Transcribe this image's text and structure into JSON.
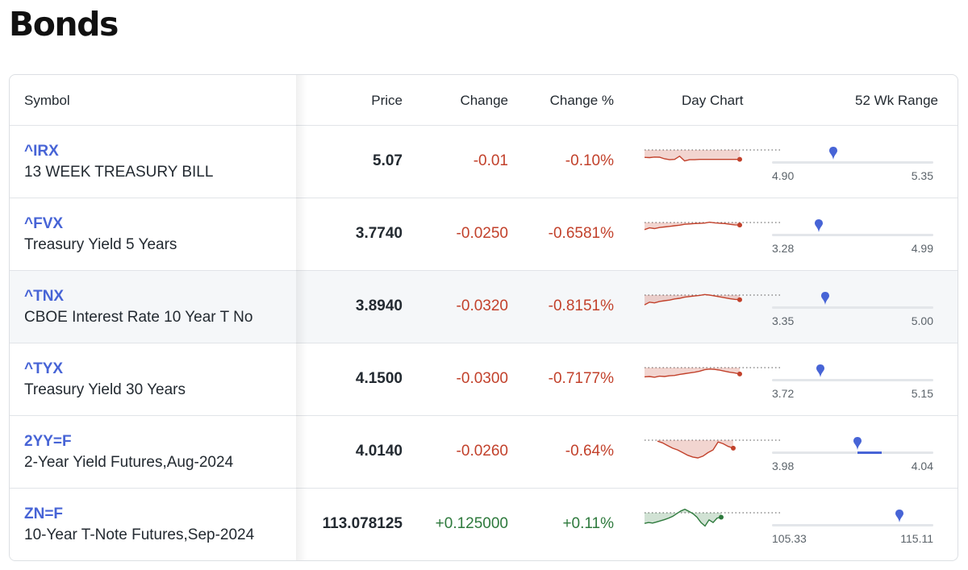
{
  "page": {
    "title": "Bonds"
  },
  "columns": {
    "symbol": "Symbol",
    "price": "Price",
    "change": "Change",
    "change_pct": "Change %",
    "day_chart": "Day Chart",
    "range_52wk": "52 Wk Range"
  },
  "colors": {
    "link": "#4764d6",
    "negative": "#c2412b",
    "positive": "#2e7a3d",
    "marker": "#4764d6"
  },
  "rows": [
    {
      "symbol": "^IRX",
      "name": "13 WEEK TREASURY BILL",
      "price": "5.07",
      "change": "-0.01",
      "change_pct": "-0.10%",
      "direction": "down",
      "highlight": false,
      "range_low": "4.90",
      "range_high": "5.35",
      "range_position": 0.38,
      "range_fill": null,
      "spark": [
        0.42,
        0.43,
        0.4,
        0.41,
        0.5,
        0.55,
        0.53,
        0.35,
        0.62,
        0.55,
        0.55,
        0.53,
        0.53,
        0.53,
        0.53,
        0.53,
        0.53,
        0.53,
        0.53,
        0.53
      ]
    },
    {
      "symbol": "^FVX",
      "name": "Treasury Yield 5 Years",
      "price": "3.7740",
      "change": "-0.0250",
      "change_pct": "-0.6581%",
      "direction": "down",
      "highlight": false,
      "range_low": "3.28",
      "range_high": "4.99",
      "range_position": 0.29,
      "range_fill": null,
      "spark": [
        0.4,
        0.3,
        0.34,
        0.28,
        0.25,
        0.22,
        0.18,
        0.15,
        0.1,
        0.08,
        0.06,
        0.05,
        0.03,
        -0.02,
        0.02,
        0.04,
        0.06,
        0.1,
        0.13,
        0.14
      ]
    },
    {
      "symbol": "^TNX",
      "name": "CBOE Interest Rate 10 Year T No",
      "price": "3.8940",
      "change": "-0.0320",
      "change_pct": "-0.8151%",
      "direction": "down",
      "highlight": true,
      "range_low": "3.35",
      "range_high": "5.00",
      "range_position": 0.33,
      "range_fill": null,
      "spark": [
        0.55,
        0.4,
        0.44,
        0.36,
        0.32,
        0.28,
        0.22,
        0.18,
        0.12,
        0.08,
        0.05,
        0.02,
        -0.03,
        0.0,
        0.05,
        0.1,
        0.15,
        0.2,
        0.24,
        0.26
      ]
    },
    {
      "symbol": "^TYX",
      "name": "Treasury Yield 30 Years",
      "price": "4.1500",
      "change": "-0.0300",
      "change_pct": "-0.7177%",
      "direction": "down",
      "highlight": false,
      "range_low": "3.72",
      "range_high": "5.15",
      "range_position": 0.3,
      "range_fill": null,
      "spark": [
        0.52,
        0.5,
        0.54,
        0.48,
        0.5,
        0.46,
        0.44,
        0.38,
        0.34,
        0.3,
        0.26,
        0.2,
        0.12,
        0.08,
        0.1,
        0.14,
        0.2,
        0.26,
        0.3,
        0.36
      ]
    },
    {
      "symbol": "2YY=F",
      "name": "2-Year Yield Futures,Aug-2024",
      "price": "4.0140",
      "change": "-0.0260",
      "change_pct": "-0.64%",
      "direction": "down",
      "highlight": false,
      "range_low": "3.98",
      "range_high": "4.04",
      "range_position": 0.53,
      "range_fill": [
        0.53,
        0.68
      ],
      "spark": [
        0.05,
        0.15,
        0.3,
        0.45,
        0.55,
        0.7,
        0.85,
        0.95,
        1.0,
        0.9,
        0.7,
        0.55,
        0.1,
        0.2,
        0.35,
        0.45
      ]
    },
    {
      "symbol": "ZN=F",
      "name": "10-Year T-Note Futures,Sep-2024",
      "price": "113.078125",
      "change": "+0.125000",
      "change_pct": "+0.11%",
      "direction": "up",
      "highlight": false,
      "range_low": "105.33",
      "range_high": "115.11",
      "range_position": 0.79,
      "range_fill": null,
      "spark": [
        0.6,
        0.55,
        0.58,
        0.52,
        0.45,
        0.38,
        0.3,
        0.2,
        0.05,
        -0.1,
        -0.2,
        -0.08,
        0.05,
        0.25,
        0.55,
        0.75,
        0.4,
        0.55,
        0.3,
        0.25
      ]
    }
  ]
}
